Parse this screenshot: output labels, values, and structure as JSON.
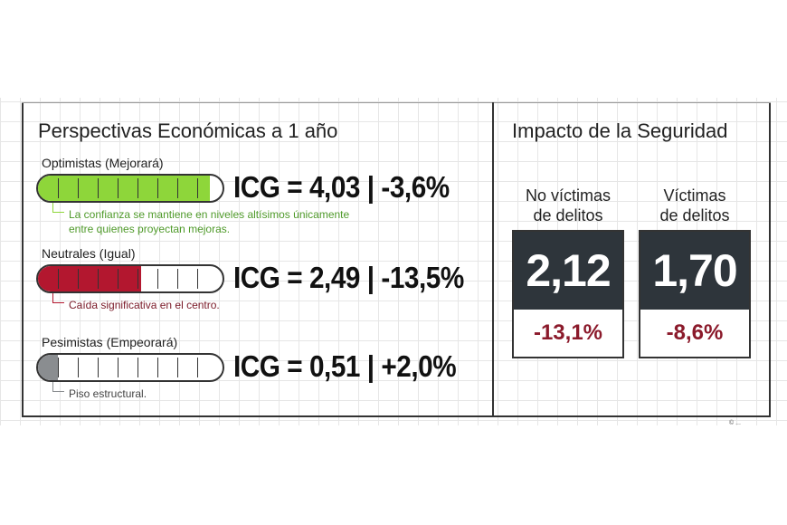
{
  "left": {
    "title": "Perspectivas Económicas a 1 año",
    "groups": [
      {
        "label": "Optimistas (Mejorará)",
        "icg": "ICG = 4,03 | -3,6%",
        "note1": "La confianza se mantiene en niveles altísimos únicamente",
        "note2": "entre quienes proyectan mejoras.",
        "fill_fraction": 0.93,
        "color": "#8ed63a",
        "note_color": "#4f9a2a"
      },
      {
        "label": "Neutrales (Igual)",
        "icg": "ICG = 2,49 | -13,5%",
        "note1": "Caída significativa en el centro.",
        "note2": "",
        "fill_fraction": 0.56,
        "color": "#b3172f",
        "note_color": "#7a1a28"
      },
      {
        "label": "Pesimistas (Empeorará)",
        "icg": "ICG = 0,51 | +2,0%",
        "note1": "Piso estructural.",
        "note2": "",
        "fill_fraction": 0.11,
        "color": "#8a8d90",
        "note_color": "#444"
      }
    ]
  },
  "right": {
    "title": "Impacto de la Seguridad",
    "cards": [
      {
        "label1": "No víctimas",
        "label2": "de delitos",
        "value": "2,12",
        "change": "-13,1%"
      },
      {
        "label1": "Víctimas",
        "label2": "de delitos",
        "value": "1,70",
        "change": "-8,6%"
      }
    ]
  },
  "credit": "© ..."
}
